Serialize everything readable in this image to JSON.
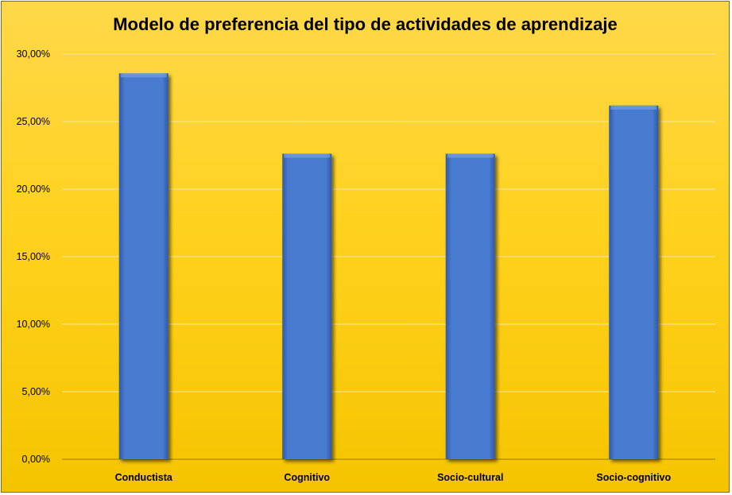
{
  "chart_data": {
    "type": "bar",
    "title": "Modelo de preferencia del tipo de actividades de aprendizaje",
    "categories": [
      "Conductista",
      "Cognitivo",
      "Socio-cultural",
      "Socio-cognitivo"
    ],
    "values": [
      0.2857,
      0.2262,
      0.2262,
      0.2619
    ],
    "ylim": [
      0,
      0.3
    ],
    "yticks": [
      0,
      0.05,
      0.1,
      0.15,
      0.2,
      0.25,
      0.3
    ],
    "ytick_labels": [
      "0,00%",
      "5,00%",
      "10,00%",
      "15,00%",
      "20,00%",
      "25,00%",
      "30,00%"
    ],
    "xlabel": "",
    "ylabel": "",
    "grid": true,
    "bar_color": "#4a7bd0",
    "background_color": "#ffd21f"
  }
}
